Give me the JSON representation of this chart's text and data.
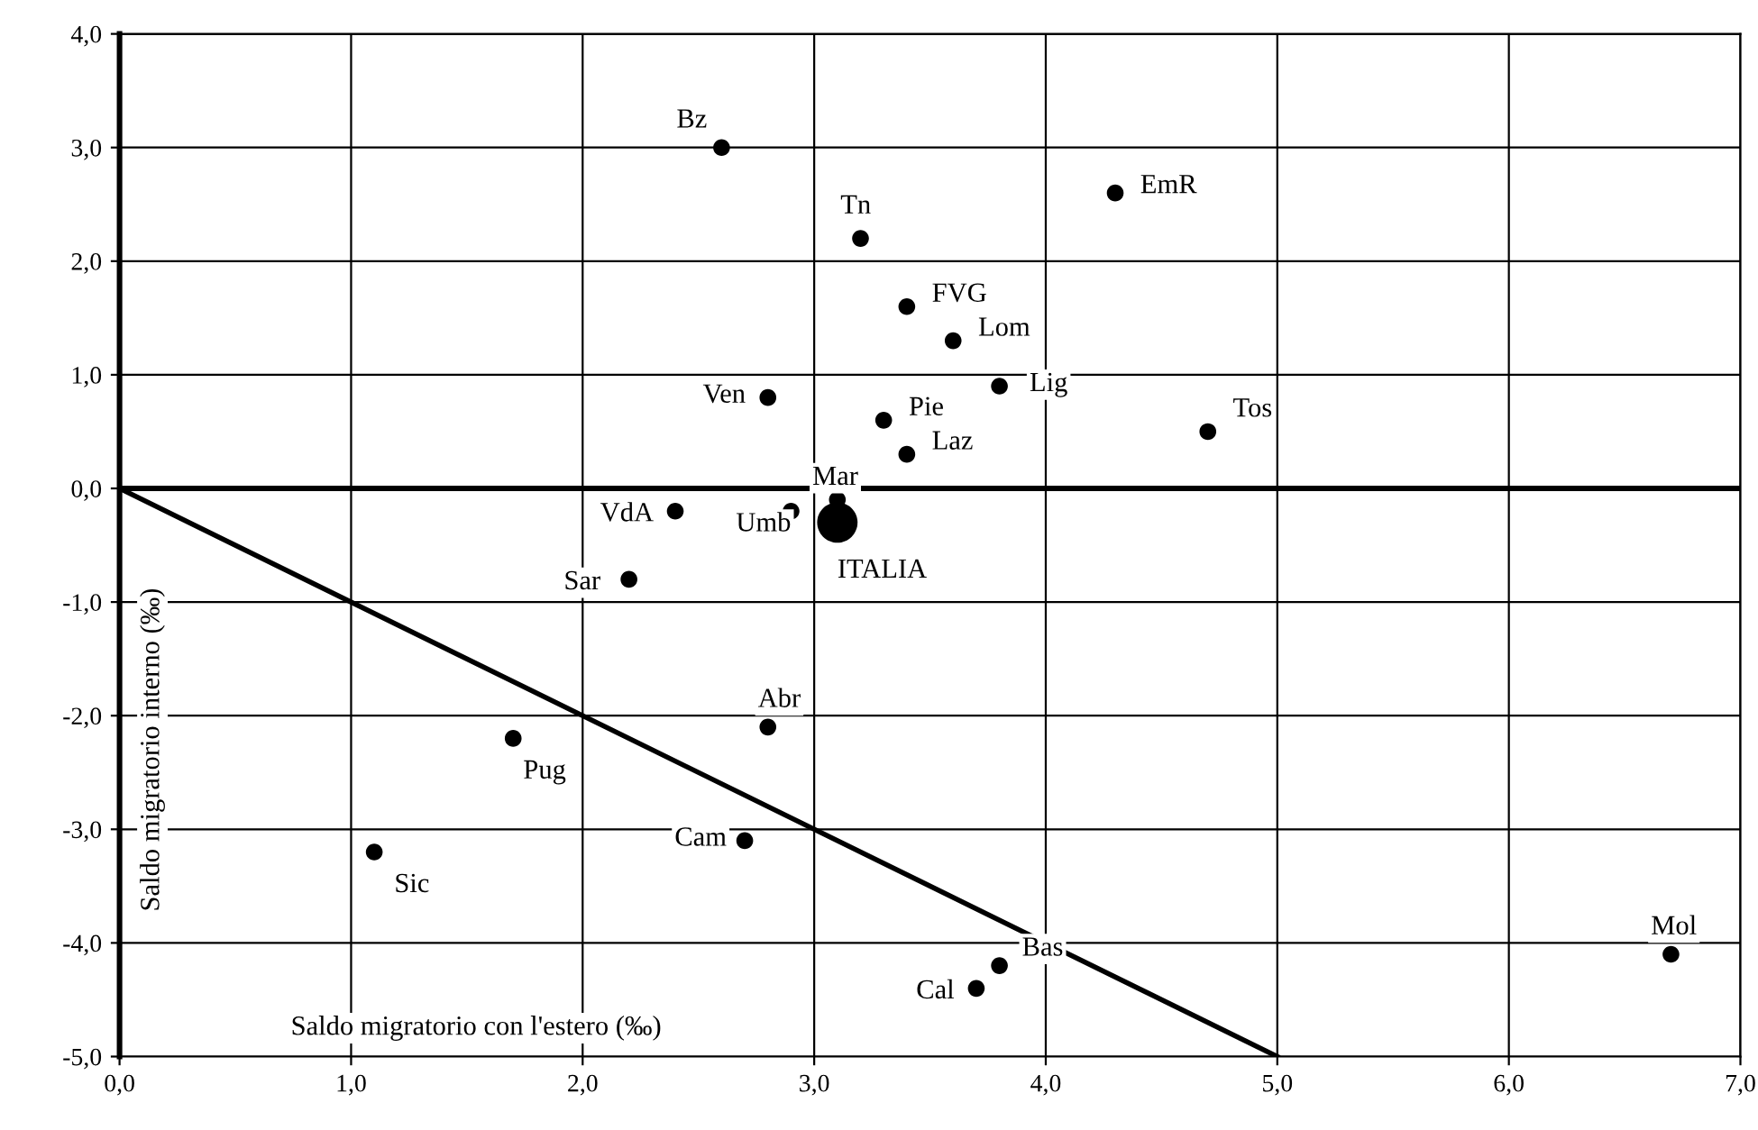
{
  "chart_data": {
    "type": "scatter",
    "xlabel": "Saldo migratorio con l'estero (‰)",
    "ylabel": "Saldo migratorio interno (‰)",
    "xlim": [
      0,
      7
    ],
    "ylim": [
      -5,
      4
    ],
    "xticks": [
      {
        "value": 0,
        "label": "0,0"
      },
      {
        "value": 1,
        "label": "1,0"
      },
      {
        "value": 2,
        "label": "2,0"
      },
      {
        "value": 3,
        "label": "3,0"
      },
      {
        "value": 4,
        "label": "4,0"
      },
      {
        "value": 5,
        "label": "5,0"
      },
      {
        "value": 6,
        "label": "6,0"
      },
      {
        "value": 7,
        "label": "7,0"
      }
    ],
    "yticks": [
      {
        "value": -5,
        "label": "-5,0"
      },
      {
        "value": -4,
        "label": "-4,0"
      },
      {
        "value": -3,
        "label": "-3,0"
      },
      {
        "value": -2,
        "label": "-2,0"
      },
      {
        "value": -1,
        "label": "-1,0"
      },
      {
        "value": 0,
        "label": "0,0"
      },
      {
        "value": 1,
        "label": "1,0"
      },
      {
        "value": 2,
        "label": "2,0"
      },
      {
        "value": 3,
        "label": "3,0"
      },
      {
        "value": 4,
        "label": "4,0"
      }
    ],
    "grid": true,
    "marker": "circle",
    "series": [
      {
        "color": "#000000",
        "x": [
          2.6,
          3.2,
          4.3,
          3.4,
          3.6,
          3.8,
          4.7,
          2.8,
          3.3,
          3.4,
          3.1,
          2.9,
          2.4,
          2.2,
          2.8,
          1.7,
          1.1,
          2.7,
          3.8,
          3.7,
          6.7
        ],
        "values": [
          3.0,
          2.2,
          2.6,
          1.6,
          1.3,
          0.9,
          0.5,
          0.8,
          0.6,
          0.3,
          -0.1,
          -0.2,
          -0.2,
          -0.8,
          -2.1,
          -2.2,
          -3.2,
          -3.1,
          -4.2,
          -4.4,
          -4.1
        ]
      },
      {
        "color": "#000000",
        "x": [
          3.1
        ],
        "values": [
          -0.3
        ]
      },
      {
        "type": "line",
        "marker": "none",
        "color": "#000000",
        "x": [
          0,
          5
        ],
        "values": [
          0,
          -5
        ]
      }
    ],
    "ref_lines": [
      {
        "axis": "y",
        "value": 0,
        "color": "#000000"
      }
    ],
    "annotations": [
      {
        "text": "Bz",
        "x": 2.6,
        "y": 3.0
      },
      {
        "text": "Tn",
        "x": 3.2,
        "y": 2.2
      },
      {
        "text": "EmR",
        "x": 4.3,
        "y": 2.6
      },
      {
        "text": "FVG",
        "x": 3.4,
        "y": 1.6
      },
      {
        "text": "Lom",
        "x": 3.6,
        "y": 1.3
      },
      {
        "text": "Lig",
        "x": 3.8,
        "y": 0.9
      },
      {
        "text": "Tos",
        "x": 4.7,
        "y": 0.5
      },
      {
        "text": "Ven",
        "x": 2.8,
        "y": 0.8
      },
      {
        "text": "Pie",
        "x": 3.3,
        "y": 0.6
      },
      {
        "text": "Laz",
        "x": 3.4,
        "y": 0.3
      },
      {
        "text": "Mar",
        "x": 3.1,
        "y": -0.1
      },
      {
        "text": "Umb",
        "x": 2.9,
        "y": -0.2
      },
      {
        "text": "VdA",
        "x": 2.4,
        "y": -0.2
      },
      {
        "text": "Sar",
        "x": 2.2,
        "y": -0.8
      },
      {
        "text": "Abr",
        "x": 2.8,
        "y": -2.1
      },
      {
        "text": "Pug",
        "x": 1.7,
        "y": -2.2
      },
      {
        "text": "Sic",
        "x": 1.1,
        "y": -3.2
      },
      {
        "text": "Cam",
        "x": 2.7,
        "y": -3.1
      },
      {
        "text": "Bas",
        "x": 3.8,
        "y": -4.2
      },
      {
        "text": "Cal",
        "x": 3.7,
        "y": -4.4
      },
      {
        "text": "Mol",
        "x": 6.7,
        "y": -4.1
      },
      {
        "text": "ITALIA",
        "x": 3.1,
        "y": -0.3
      }
    ]
  }
}
